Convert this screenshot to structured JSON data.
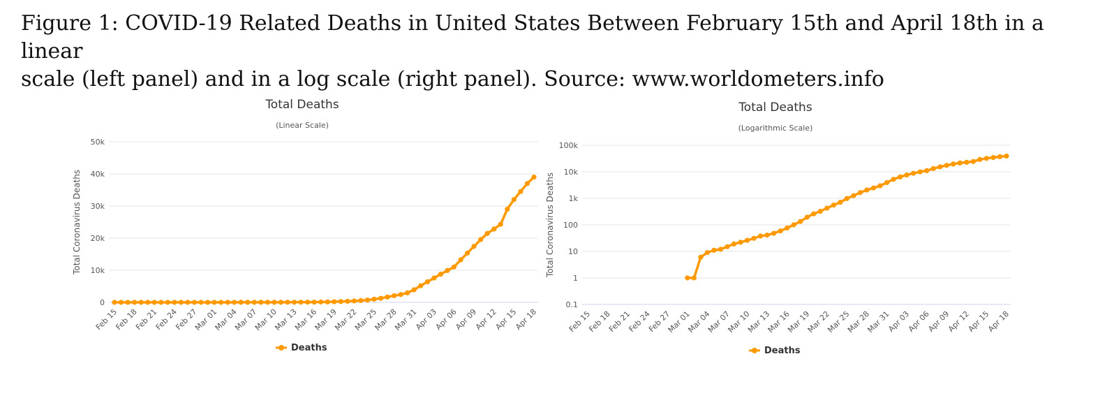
{
  "caption": {
    "line1": "Figure 1: COVID-19 Related Deaths in United States Between February 15th and April 18th in a linear",
    "line2": "scale (left panel) and in a log scale (right panel). Source: www.worldometers.info"
  },
  "colors": {
    "series": "#ff9900",
    "grid": "#e6e6e6",
    "axis": "#ccd6eb"
  },
  "chart_data": [
    {
      "type": "line",
      "title": "Total Deaths",
      "subtitle": "(Linear Scale)",
      "ylabel": "Total Coronavirus Deaths",
      "yscale": "linear",
      "ylim": [
        0,
        50000
      ],
      "yticks": [
        0,
        10000,
        20000,
        30000,
        40000,
        50000
      ],
      "ytick_labels": [
        "0",
        "10k",
        "20k",
        "30k",
        "40k",
        "50k"
      ],
      "xtick_labels": [
        "Feb 15",
        "Feb 18",
        "Feb 21",
        "Feb 24",
        "Feb 27",
        "Mar 01",
        "Mar 04",
        "Mar 07",
        "Mar 10",
        "Mar 13",
        "Mar 16",
        "Mar 19",
        "Mar 22",
        "Mar 25",
        "Mar 28",
        "Mar 31",
        "Apr 03",
        "Apr 06",
        "Apr 09",
        "Apr 12",
        "Apr 15",
        "Apr 18"
      ],
      "legend": "bottom-center",
      "grid": true,
      "x": [
        "Feb 15",
        "Feb 16",
        "Feb 17",
        "Feb 18",
        "Feb 19",
        "Feb 20",
        "Feb 21",
        "Feb 22",
        "Feb 23",
        "Feb 24",
        "Feb 25",
        "Feb 26",
        "Feb 27",
        "Feb 28",
        "Feb 29",
        "Mar 01",
        "Mar 02",
        "Mar 03",
        "Mar 04",
        "Mar 05",
        "Mar 06",
        "Mar 07",
        "Mar 08",
        "Mar 09",
        "Mar 10",
        "Mar 11",
        "Mar 12",
        "Mar 13",
        "Mar 14",
        "Mar 15",
        "Mar 16",
        "Mar 17",
        "Mar 18",
        "Mar 19",
        "Mar 20",
        "Mar 21",
        "Mar 22",
        "Mar 23",
        "Mar 24",
        "Mar 25",
        "Mar 26",
        "Mar 27",
        "Mar 28",
        "Mar 29",
        "Mar 30",
        "Mar 31",
        "Apr 01",
        "Apr 02",
        "Apr 03",
        "Apr 04",
        "Apr 05",
        "Apr 06",
        "Apr 07",
        "Apr 08",
        "Apr 09",
        "Apr 10",
        "Apr 11",
        "Apr 12",
        "Apr 13",
        "Apr 14",
        "Apr 15",
        "Apr 16",
        "Apr 17",
        "Apr 18"
      ],
      "series": [
        {
          "name": "Deaths",
          "values": [
            0,
            0,
            0,
            0,
            0,
            0,
            0,
            0,
            0,
            0,
            0,
            0,
            0,
            0,
            0,
            1,
            1,
            6,
            9,
            11,
            12,
            15,
            19,
            22,
            26,
            31,
            38,
            41,
            48,
            59,
            76,
            100,
            134,
            193,
            261,
            324,
            426,
            557,
            710,
            981,
            1262,
            1648,
            2061,
            2445,
            2958,
            3916,
            5183,
            6385,
            7571,
            8759,
            9915,
            11027,
            13232,
            15323,
            17424,
            19549,
            21459,
            22816,
            24304,
            29000,
            32000,
            34500,
            37000,
            39000
          ]
        }
      ]
    },
    {
      "type": "line",
      "title": "Total Deaths",
      "subtitle": "(Logarithmic Scale)",
      "ylabel": "Total Coronavirus Deaths",
      "yscale": "log",
      "ylim": [
        0.1,
        100000
      ],
      "yticks": [
        0.1,
        1,
        10,
        100,
        1000,
        10000,
        100000
      ],
      "ytick_labels": [
        "0.1",
        "1",
        "10",
        "100",
        "1k",
        "10k",
        "100k"
      ],
      "xtick_labels": [
        "Feb 15",
        "Feb 18",
        "Feb 21",
        "Feb 24",
        "Feb 27",
        "Mar 01",
        "Mar 04",
        "Mar 07",
        "Mar 10",
        "Mar 13",
        "Mar 16",
        "Mar 19",
        "Mar 22",
        "Mar 25",
        "Mar 28",
        "Mar 31",
        "Apr 03",
        "Apr 06",
        "Apr 09",
        "Apr 12",
        "Apr 15",
        "Apr 18"
      ],
      "legend": "bottom-center",
      "grid": true,
      "x": [
        "Feb 15",
        "Feb 16",
        "Feb 17",
        "Feb 18",
        "Feb 19",
        "Feb 20",
        "Feb 21",
        "Feb 22",
        "Feb 23",
        "Feb 24",
        "Feb 25",
        "Feb 26",
        "Feb 27",
        "Feb 28",
        "Feb 29",
        "Mar 01",
        "Mar 02",
        "Mar 03",
        "Mar 04",
        "Mar 05",
        "Mar 06",
        "Mar 07",
        "Mar 08",
        "Mar 09",
        "Mar 10",
        "Mar 11",
        "Mar 12",
        "Mar 13",
        "Mar 14",
        "Mar 15",
        "Mar 16",
        "Mar 17",
        "Mar 18",
        "Mar 19",
        "Mar 20",
        "Mar 21",
        "Mar 22",
        "Mar 23",
        "Mar 24",
        "Mar 25",
        "Mar 26",
        "Mar 27",
        "Mar 28",
        "Mar 29",
        "Mar 30",
        "Mar 31",
        "Apr 01",
        "Apr 02",
        "Apr 03",
        "Apr 04",
        "Apr 05",
        "Apr 06",
        "Apr 07",
        "Apr 08",
        "Apr 09",
        "Apr 10",
        "Apr 11",
        "Apr 12",
        "Apr 13",
        "Apr 14",
        "Apr 15",
        "Apr 16",
        "Apr 17",
        "Apr 18"
      ],
      "series": [
        {
          "name": "Deaths",
          "values": [
            null,
            null,
            null,
            null,
            null,
            null,
            null,
            null,
            null,
            null,
            null,
            null,
            null,
            null,
            null,
            1,
            1,
            6,
            9,
            11,
            12,
            15,
            19,
            22,
            26,
            31,
            38,
            41,
            48,
            59,
            76,
            100,
            134,
            193,
            261,
            324,
            426,
            557,
            710,
            981,
            1262,
            1648,
            2061,
            2445,
            2958,
            3916,
            5183,
            6385,
            7571,
            8759,
            9915,
            11027,
            13232,
            15323,
            17424,
            19549,
            21459,
            22816,
            24304,
            29000,
            32000,
            34500,
            37000,
            39000
          ]
        }
      ]
    }
  ]
}
